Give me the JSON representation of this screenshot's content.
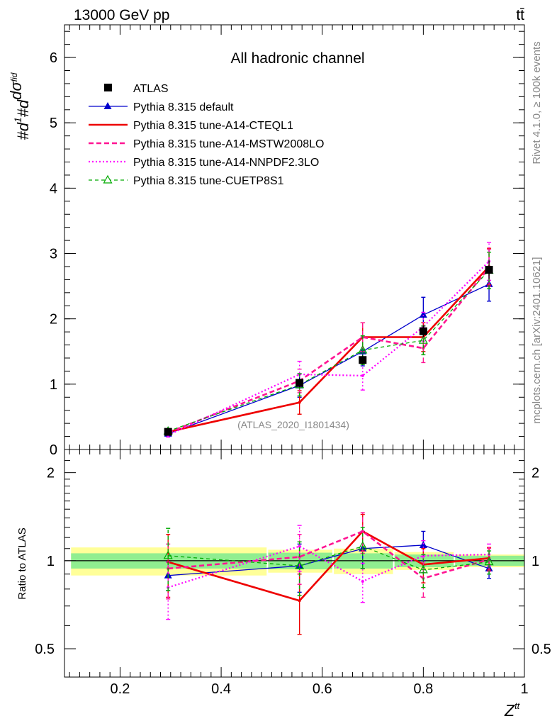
{
  "header": {
    "energy_label": "13000 GeV pp",
    "process_label": "tt̄"
  },
  "side_labels": {
    "rivet": "Rivet 4.1.0, ≥ 100k events",
    "mcplots": "mcplots.cern.ch [arXiv:2401.10621]"
  },
  "chart_data": [
    {
      "type": "line",
      "panel": "main",
      "title": "All hadronic channel",
      "watermark": "(ATLAS_2020_I1801434)",
      "ylabel": "#d1/σ#dσ^fid/d Z^tt",
      "ylim": [
        0,
        6.5
      ],
      "yticks": [
        0,
        1,
        2,
        3,
        4,
        5,
        6
      ],
      "xlim": [
        0.09,
        1.0
      ],
      "x": [
        0.295,
        0.555,
        0.68,
        0.8,
        0.93
      ],
      "x_bin_edges": [
        0.1,
        0.49,
        0.62,
        0.74,
        0.86,
        1.0
      ],
      "data": {
        "name": "ATLAS",
        "values": [
          0.27,
          1.02,
          1.37,
          1.81,
          2.75
        ],
        "errors": [
          0.03,
          0.07,
          0.07,
          0.09,
          0.14
        ]
      },
      "series": [
        {
          "name": "Pythia 8.315 default",
          "style": "solid-triangle",
          "color": "#0000cc",
          "values": [
            0.24,
            0.98,
            1.5,
            2.06,
            2.53
          ],
          "errors": [
            0.03,
            0.18,
            0.22,
            0.27,
            0.26
          ]
        },
        {
          "name": "Pythia 8.315 tune-A14-CTEQL1",
          "style": "solid-thick",
          "color": "#ee0000",
          "values": [
            0.27,
            0.72,
            1.72,
            1.72,
            2.8
          ],
          "errors": [
            0.03,
            0.18,
            0.22,
            0.22,
            0.28
          ]
        },
        {
          "name": "Pythia 8.315 tune-A14-MSTW2008LO",
          "style": "dashed",
          "color": "#ff1493",
          "values": [
            0.26,
            1.05,
            1.72,
            1.55,
            2.78
          ],
          "errors": [
            0.03,
            0.18,
            0.22,
            0.22,
            0.28
          ]
        },
        {
          "name": "Pythia 8.315 tune-A14-NNPDF2.3LO",
          "style": "dotted",
          "color": "#ff00ff",
          "values": [
            0.22,
            1.15,
            1.13,
            1.88,
            2.88
          ],
          "errors": [
            0.03,
            0.2,
            0.22,
            0.22,
            0.29
          ]
        },
        {
          "name": "Pythia 8.315 tune-CUETP8S1",
          "style": "dashed-open-triangle",
          "color": "#00aa00",
          "values": [
            0.28,
            0.99,
            1.52,
            1.67,
            2.74
          ],
          "errors": [
            0.03,
            0.17,
            0.22,
            0.22,
            0.28
          ]
        }
      ]
    },
    {
      "type": "line",
      "panel": "ratio",
      "ylabel": "Ratio to ATLAS",
      "xlabel": "Z^tt",
      "ylim": [
        0.4,
        2.4
      ],
      "log_scale": true,
      "yticks": [
        0.5,
        1,
        2
      ],
      "xticks": [
        0.2,
        0.4,
        0.6,
        0.8,
        1
      ],
      "xlim": [
        0.09,
        1.0
      ],
      "x": [
        0.295,
        0.555,
        0.68,
        0.8,
        0.93
      ],
      "bands": {
        "edges": [
          0.1,
          0.49,
          0.62,
          0.74,
          0.86,
          1.0
        ],
        "inner_halfwidth": [
          0.06,
          0.065,
          0.06,
          0.05,
          0.04
        ],
        "outer_halfwidth": [
          0.11,
          0.09,
          0.1,
          0.07,
          0.05
        ],
        "inner_color": "#90ee90",
        "outer_color": "#ffff99"
      },
      "series": [
        {
          "name": "Pythia 8.315 default",
          "values": [
            0.89,
            0.96,
            1.1,
            1.13,
            0.94
          ],
          "errors": [
            0.1,
            0.18,
            0.16,
            0.13,
            0.07
          ]
        },
        {
          "name": "Pythia 8.315 tune-A14-CTEQL1",
          "values": [
            0.99,
            0.73,
            1.26,
            0.97,
            1.02
          ],
          "errors": [
            0.24,
            0.17,
            0.18,
            0.13,
            0.09
          ]
        },
        {
          "name": "Pythia 8.315 tune-A14-MSTW2008LO",
          "values": [
            0.94,
            1.03,
            1.26,
            0.87,
            1.01
          ],
          "errors": [
            0.2,
            0.2,
            0.2,
            0.12,
            0.09
          ]
        },
        {
          "name": "Pythia 8.315 tune-A14-NNPDF2.3LO",
          "values": [
            0.81,
            1.12,
            0.85,
            1.04,
            1.05
          ],
          "errors": [
            0.18,
            0.2,
            0.13,
            0.13,
            0.09
          ]
        },
        {
          "name": "Pythia 8.315 tune-CUETP8S1",
          "values": [
            1.04,
            0.96,
            1.12,
            0.93,
            0.99
          ],
          "errors": [
            0.25,
            0.2,
            0.18,
            0.12,
            0.09
          ]
        }
      ]
    }
  ]
}
